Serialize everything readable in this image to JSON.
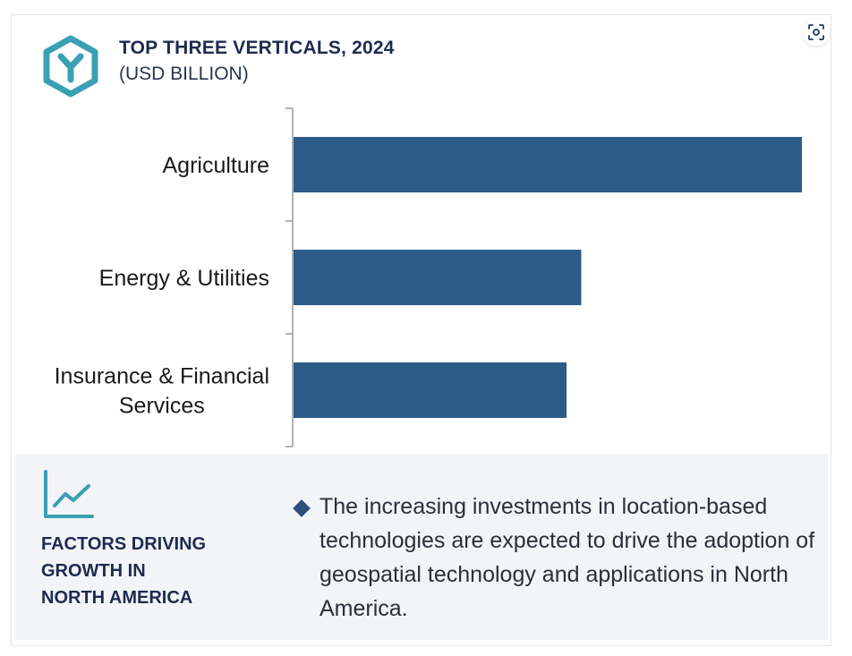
{
  "header": {
    "title": "TOP THREE VERTICALS, 2024",
    "subtitle": "(USD BILLION)"
  },
  "icons": {
    "logo": "hexagon-y-logo-icon",
    "expand": "zoom-focus-icon",
    "trend": "line-chart-trend-icon",
    "bullet": "diamond-bullet-icon"
  },
  "colors": {
    "bar": "#2d5b8a",
    "accent": "#3aa0b4",
    "heading": "#1d2b4f",
    "panel": "#f2f4f8"
  },
  "chart_data": {
    "type": "bar",
    "orientation": "horizontal",
    "title": "TOP THREE VERTICALS, 2024",
    "subtitle": "(USD BILLION)",
    "categories": [
      "Agriculture",
      "Energy & Utilities",
      "Insurance & Financial Services"
    ],
    "category_lines": [
      [
        "Agriculture"
      ],
      [
        "Energy & Utilities"
      ],
      [
        "Insurance & Financial",
        "Services"
      ]
    ],
    "values": [
      100,
      56.6,
      53.7
    ],
    "xlabel": "",
    "ylabel": "",
    "xlim": [
      0,
      100
    ],
    "grid": false,
    "legend": "none"
  },
  "factors": {
    "heading_lines": [
      "FACTORS DRIVING",
      "GROWTH IN",
      "NORTH AMERICA"
    ],
    "text": "The increasing investments in location-based technologies are expected to drive the adoption of geospatial technology and applications in North America."
  }
}
